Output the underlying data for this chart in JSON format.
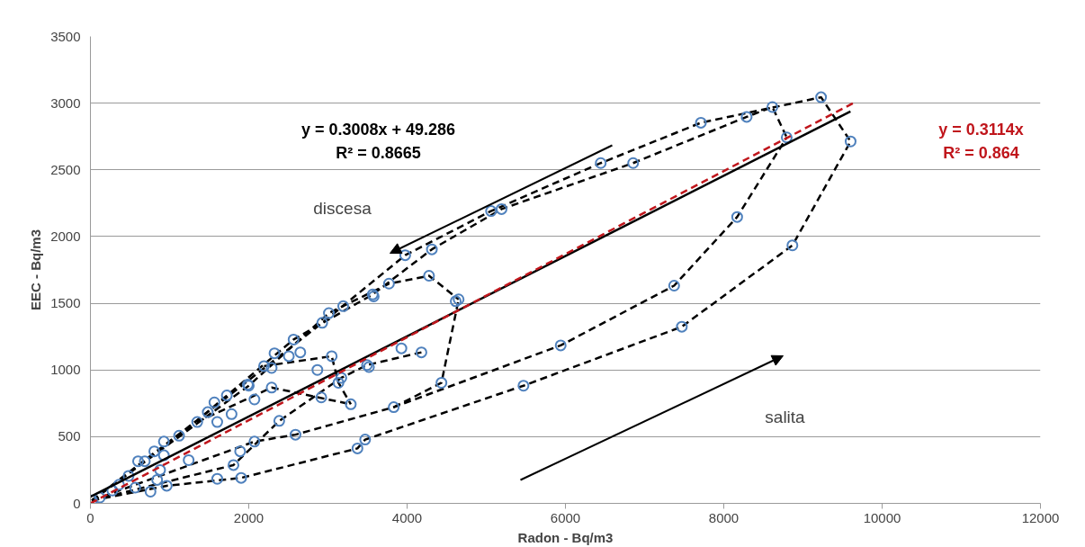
{
  "chart_data": {
    "type": "scatter",
    "xlabel": "Radon - Bq/m3",
    "ylabel": "EEC - Bq/m3",
    "xlim": [
      0,
      12000
    ],
    "xticks": [
      0,
      2000,
      4000,
      6000,
      8000,
      10000,
      12000
    ],
    "ylim": [
      0,
      3500
    ],
    "yticks": [
      0,
      500,
      1000,
      1500,
      2000,
      2500,
      3000,
      3500
    ],
    "grid": "y",
    "annotations": [
      "discesa",
      "salita"
    ],
    "series": [
      {
        "type": "line",
        "color": "#000000",
        "line_style": "dashed",
        "marker": "none",
        "x": [
          20,
          964,
          1904,
          3373,
          3470,
          5470,
          7470,
          8867,
          9602
        ],
        "values": [
          22,
          132,
          191,
          412,
          478,
          882,
          1324,
          1934,
          2713
        ]
      },
      {
        "type": "line",
        "color": "#000000",
        "line_style": "dashed",
        "marker": "none",
        "x": [
          20,
          1482,
          2928,
          3976,
          5060,
          6446,
          7711,
          9229,
          9602
        ],
        "values": [
          22,
          684,
          1353,
          1860,
          2191,
          2551,
          2853,
          3044,
          2713
        ]
      },
      {
        "type": "line",
        "color": "#000000",
        "line_style": "dashed",
        "marker": "none",
        "x": [
          20,
          2072,
          2590,
          3831,
          5940,
          7373,
          8169,
          8795
        ],
        "values": [
          22,
          463,
          515,
          721,
          1184,
          1632,
          2147,
          2743
        ]
      },
      {
        "type": "line",
        "color": "#000000",
        "line_style": "dashed",
        "marker": "none",
        "x": [
          20,
          1120,
          2566,
          3566,
          4313,
          5193,
          6855,
          8289,
          8614,
          8795
        ],
        "values": [
          22,
          507,
          1228,
          1566,
          1904,
          2206,
          2551,
          2897,
          2971,
          2743
        ]
      },
      {
        "type": "line",
        "color": "#000000",
        "line_style": "dashed",
        "marker": "none",
        "x": [
          20,
          1807,
          2385,
          3169,
          3494,
          4181
        ],
        "values": [
          22,
          287,
          618,
          941,
          1037,
          1132
        ]
      },
      {
        "type": "line",
        "color": "#000000",
        "line_style": "dashed",
        "marker": "none",
        "x": [
          20,
          2000,
          3012,
          3771,
          4277,
          4651
        ],
        "values": [
          22,
          882,
          1426,
          1647,
          1706,
          1529
        ]
      },
      {
        "type": "line",
        "color": "#000000",
        "line_style": "dashed",
        "marker": "none",
        "x": [
          3831,
          4434,
          4651
        ],
        "values": [
          721,
          904,
          1529
        ]
      },
      {
        "type": "line",
        "color": "#000000",
        "line_style": "dashed",
        "marker": "none",
        "x": [
          1349,
          2289,
          3289
        ],
        "values": [
          610,
          868,
          743
        ]
      },
      {
        "type": "line",
        "color": "#000000",
        "line_style": "dashed",
        "marker": "none",
        "x": [
          2193,
          3048,
          3133,
          3289
        ],
        "values": [
          1029,
          1103,
          904,
          743
        ]
      },
      {
        "color": "#4f81bd",
        "marker": "circle",
        "x": [
          9229,
          9602,
          8614,
          8289,
          7711,
          6446,
          6855,
          8867,
          7373,
          8169,
          8795,
          7470,
          5940,
          5470,
          5060,
          5193,
          3976,
          4313,
          3771,
          3566,
          4277,
          4651,
          4614,
          3578,
          3193,
          3012,
          2928,
          2566,
          2651,
          2325,
          2506,
          2193,
          2289,
          3048,
          3928,
          4181,
          3494,
          3518,
          2867,
          3169,
          3133,
          3289,
          2000,
          2072,
          2289,
          2916,
          2385,
          3831,
          4434,
          2590,
          2072,
          1891,
          1807,
          1904,
          1602,
          3373,
          3470,
          1988,
          1723,
          1566,
          1783,
          1602,
          1349,
          1482,
          1120,
          928,
          928,
          687,
          807,
          1241,
          843,
          964,
          759,
          482,
          602,
          361,
          277,
          120,
          20,
          566,
          880
        ],
        "values": [
          3044,
          2713,
          2971,
          2897,
          2853,
          2551,
          2551,
          1934,
          1632,
          2147,
          2743,
          1324,
          1184,
          882,
          2191,
          2206,
          1860,
          1904,
          1647,
          1566,
          1706,
          1529,
          1515,
          1551,
          1478,
          1426,
          1353,
          1228,
          1132,
          1125,
          1103,
          1029,
          1015,
          1103,
          1162,
          1132,
          1037,
          1022,
          1000,
          941,
          904,
          743,
          882,
          779,
          868,
          794,
          618,
          721,
          904,
          515,
          463,
          390,
          287,
          191,
          184,
          412,
          478,
          890,
          809,
          757,
          669,
          610,
          610,
          684,
          507,
          463,
          360,
          316,
          390,
          324,
          176,
          132,
          88,
          206,
          316,
          140,
          96,
          44,
          22,
          118,
          250
        ]
      },
      {
        "type": "line",
        "name": "y = 0.3008x + 49.286\nR² = 0.8665",
        "color": "#000000",
        "line_style": "solid",
        "marker": "none",
        "x": [
          0,
          9600
        ],
        "values": [
          49,
          2937
        ]
      },
      {
        "type": "line",
        "name": "y = 0.3114x\nR² = 0.864",
        "color": "#c0161c",
        "line_style": "dashed",
        "marker": "none",
        "x": [
          0,
          9650
        ],
        "values": [
          0,
          3005
        ]
      }
    ]
  }
}
